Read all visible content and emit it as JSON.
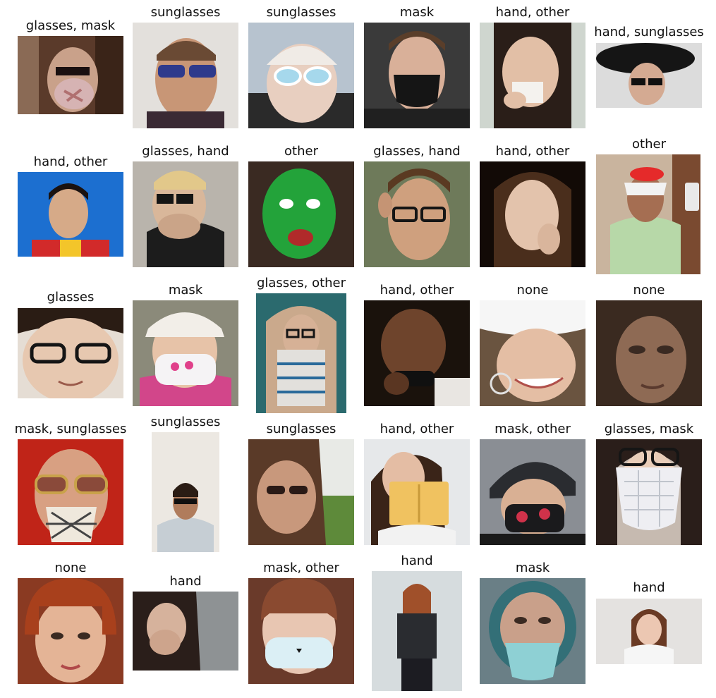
{
  "grid": [
    [
      "glasses, mask",
      "sunglasses",
      "sunglasses",
      "mask",
      "hand, other",
      "hand, sunglasses"
    ],
    [
      "hand, other",
      "glasses, hand",
      "other",
      "glasses, hand",
      "hand, other",
      "other"
    ],
    [
      "glasses",
      "mask",
      "glasses, other",
      "hand, other",
      "none",
      "none"
    ],
    [
      "mask, sunglasses",
      "sunglasses",
      "sunglasses",
      "hand, other",
      "mask, other",
      "glasses, mask"
    ],
    [
      "none",
      "hand",
      "mask, other",
      "hand",
      "mask",
      "hand"
    ]
  ]
}
